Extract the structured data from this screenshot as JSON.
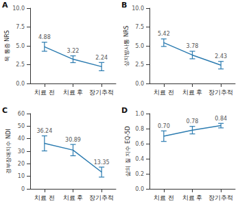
{
  "chart_data": [
    {
      "type": "line",
      "panel": "A",
      "y_label": "목 통증 NRS",
      "color": "#2b7bb0",
      "data_labels": true,
      "grid": false,
      "categories": [
        "치료 전",
        "치료 후",
        "장기추적"
      ],
      "values": [
        4.88,
        3.22,
        2.24
      ],
      "errors": [
        0.6,
        0.45,
        0.55
      ],
      "ylim": [
        0,
        10
      ],
      "yticks": [
        {
          "value": 0,
          "label": "0.0"
        },
        {
          "value": 2.5,
          "label": "2.5"
        },
        {
          "value": 5,
          "label": "5.0"
        },
        {
          "value": 7.5,
          "label": "7.5"
        },
        {
          "value": 10,
          "label": "10.0"
        }
      ]
    },
    {
      "type": "line",
      "panel": "B",
      "y_label": "상지방사통 NRS",
      "color": "#2b7bb0",
      "data_labels": true,
      "grid": false,
      "categories": [
        "치료 전",
        "치료 후",
        "장기추적"
      ],
      "values": [
        5.42,
        3.78,
        2.43
      ],
      "errors": [
        0.5,
        0.5,
        0.5
      ],
      "ylim": [
        0,
        10
      ],
      "yticks": [
        {
          "value": 0,
          "label": "0.0"
        },
        {
          "value": 2.5,
          "label": "2.5"
        },
        {
          "value": 5,
          "label": "5.0"
        },
        {
          "value": 7.5,
          "label": "7.5"
        },
        {
          "value": 10,
          "label": "10.0"
        }
      ]
    },
    {
      "type": "line",
      "panel": "C",
      "y_label": "경부장애지수 NDI",
      "color": "#2b7bb0",
      "data_labels": true,
      "grid": false,
      "categories": [
        "치료 전",
        "치료 후",
        "장기추적"
      ],
      "values": [
        36.24,
        30.89,
        13.35
      ],
      "errors": [
        6,
        4.5,
        4
      ],
      "ylim": [
        0,
        60
      ],
      "yticks": [
        0,
        10,
        20,
        30,
        40,
        50,
        60
      ]
    },
    {
      "type": "line",
      "panel": "D",
      "y_label": "삶의 질 지수 EQ-5D",
      "color": "#2b7bb0",
      "data_labels": true,
      "grid": false,
      "categories": [
        "치료 전",
        "치료 후",
        "장기추적"
      ],
      "values": [
        0.7,
        0.78,
        0.84
      ],
      "value_labels": [
        "0.70",
        "0.78",
        "0.84"
      ],
      "errors": [
        0.07,
        0.05,
        0.03
      ],
      "ylim": [
        0,
        1
      ],
      "yticks": [
        {
          "value": 0,
          "label": "0.0"
        },
        {
          "value": 0.2,
          "label": "0.2"
        },
        {
          "value": 0.4,
          "label": "0.4"
        },
        {
          "value": 0.6,
          "label": "0.6"
        },
        {
          "value": 0.8,
          "label": "0.8"
        },
        {
          "value": 1,
          "label": "1.0"
        }
      ]
    }
  ]
}
